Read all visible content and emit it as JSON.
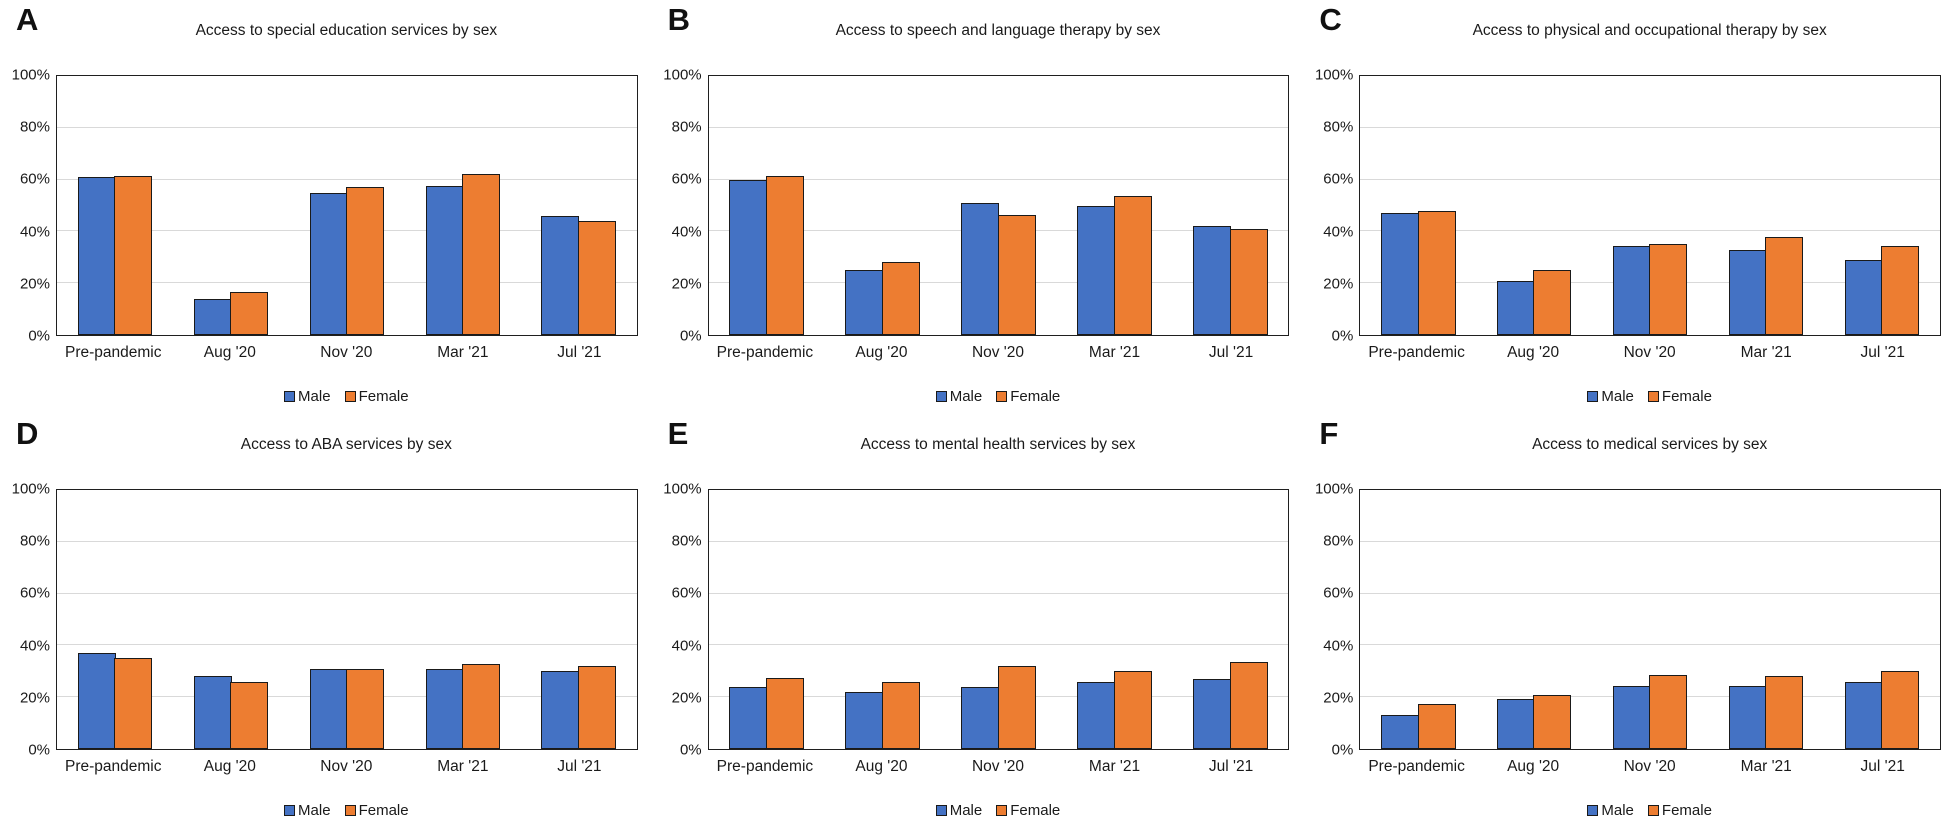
{
  "colors": {
    "male": "#4472C4",
    "female": "#ED7D31",
    "bar_border": "#1a1a1a",
    "gridline": "#d9d9d9",
    "plot_border": "#1f1f1f"
  },
  "y_axis": {
    "tick_labels": [
      "0%",
      "20%",
      "40%",
      "60%",
      "80%",
      "100%"
    ],
    "tick_values": [
      0,
      20,
      40,
      60,
      80,
      100
    ],
    "gridline_values": [
      20,
      40,
      60,
      80
    ],
    "max": 100
  },
  "chart_data": [
    {
      "type": "bar",
      "panel_label": "A",
      "title": "Access to special education services by sex",
      "categories": [
        "Pre-pandemic",
        "Aug '20",
        "Nov '20",
        "Mar '21",
        "Jul '21"
      ],
      "series": [
        {
          "name": "Male",
          "values": [
            61,
            14,
            55,
            57.5,
            46
          ]
        },
        {
          "name": "Female",
          "values": [
            61.5,
            16.5,
            57,
            62,
            44
          ]
        }
      ],
      "ylim": [
        0,
        100
      ],
      "grid": true,
      "legend_position": "bottom"
    },
    {
      "type": "bar",
      "panel_label": "B",
      "title": "Access to speech and language therapy by sex",
      "categories": [
        "Pre-pandemic",
        "Aug '20",
        "Nov '20",
        "Mar '21",
        "Jul '21"
      ],
      "series": [
        {
          "name": "Male",
          "values": [
            60,
            25,
            51,
            50,
            42
          ]
        },
        {
          "name": "Female",
          "values": [
            61.5,
            28,
            46.5,
            53.5,
            41
          ]
        }
      ],
      "ylim": [
        0,
        100
      ],
      "grid": true,
      "legend_position": "bottom"
    },
    {
      "type": "bar",
      "panel_label": "C",
      "title": "Access to physical and occupational therapy by sex",
      "categories": [
        "Pre-pandemic",
        "Aug '20",
        "Nov '20",
        "Mar '21",
        "Jul '21"
      ],
      "series": [
        {
          "name": "Male",
          "values": [
            47,
            21,
            34.5,
            33,
            29
          ]
        },
        {
          "name": "Female",
          "values": [
            48,
            25,
            35,
            38,
            34.5
          ]
        }
      ],
      "ylim": [
        0,
        100
      ],
      "grid": true,
      "legend_position": "bottom"
    },
    {
      "type": "bar",
      "panel_label": "D",
      "title": "Access to ABA services by sex",
      "categories": [
        "Pre-pandemic",
        "Aug '20",
        "Nov '20",
        "Mar '21",
        "Jul '21"
      ],
      "series": [
        {
          "name": "Male",
          "values": [
            37,
            28,
            31,
            31,
            30
          ]
        },
        {
          "name": "Female",
          "values": [
            35,
            26,
            31,
            33,
            32
          ]
        }
      ],
      "ylim": [
        0,
        100
      ],
      "grid": true,
      "legend_position": "bottom"
    },
    {
      "type": "bar",
      "panel_label": "E",
      "title": "Access to mental health services by sex",
      "categories": [
        "Pre-pandemic",
        "Aug '20",
        "Nov '20",
        "Mar '21",
        "Jul '21"
      ],
      "series": [
        {
          "name": "Male",
          "values": [
            24,
            22,
            24,
            26,
            27
          ]
        },
        {
          "name": "Female",
          "values": [
            27.5,
            26,
            32,
            30,
            33.5
          ]
        }
      ],
      "ylim": [
        0,
        100
      ],
      "grid": true,
      "legend_position": "bottom"
    },
    {
      "type": "bar",
      "panel_label": "F",
      "title": "Access to medical services by sex",
      "categories": [
        "Pre-pandemic",
        "Aug '20",
        "Nov '20",
        "Mar '21",
        "Jul '21"
      ],
      "series": [
        {
          "name": "Male",
          "values": [
            13,
            19.5,
            24.5,
            24.5,
            26
          ]
        },
        {
          "name": "Female",
          "values": [
            17.5,
            21,
            28.5,
            28,
            30
          ]
        }
      ],
      "ylim": [
        0,
        100
      ],
      "grid": true,
      "legend_position": "bottom"
    }
  ]
}
